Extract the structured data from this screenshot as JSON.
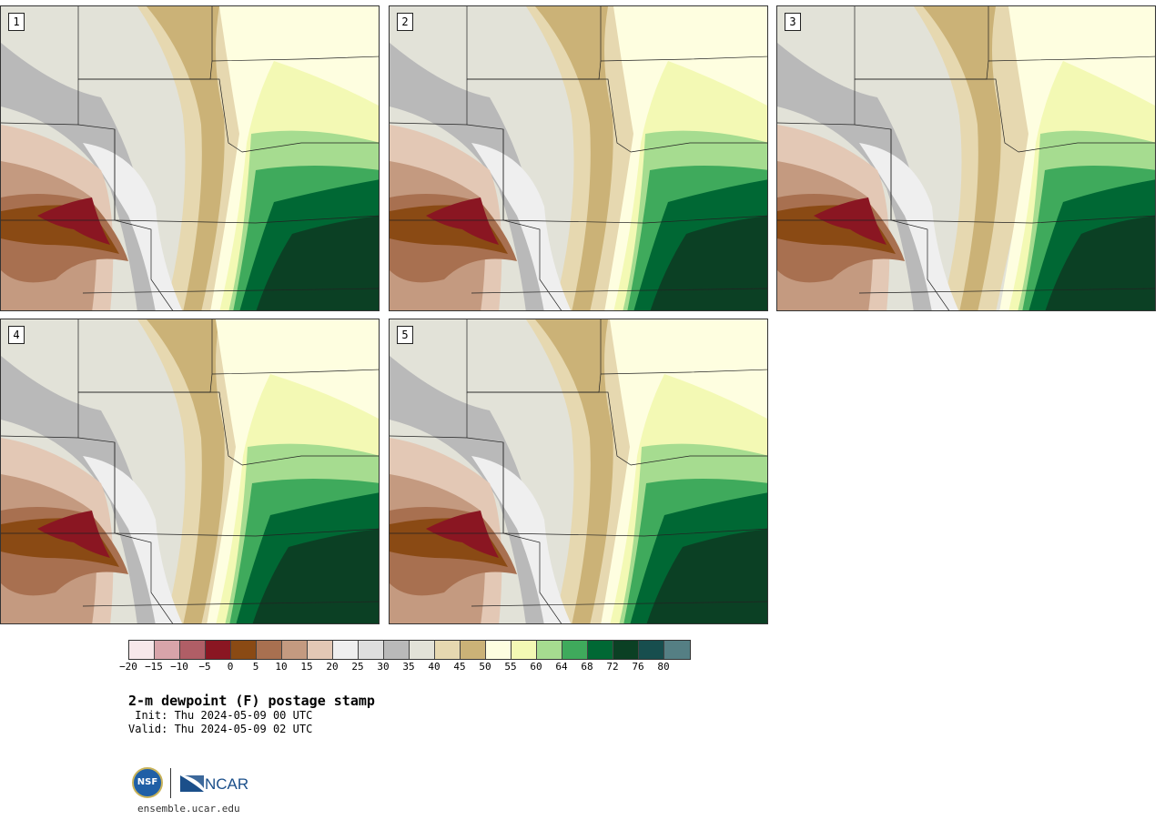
{
  "panels": [
    {
      "label": "1"
    },
    {
      "label": "2"
    },
    {
      "label": "3"
    },
    {
      "label": "4"
    },
    {
      "label": "5"
    }
  ],
  "colorbar": {
    "colors": [
      "#f7e8ea",
      "#d8a4aa",
      "#b05e66",
      "#8a1622",
      "#8a4a14",
      "#a87050",
      "#c49a80",
      "#e3c8b5",
      "#efefef",
      "#dedede",
      "#b9b9b9",
      "#e2e2d8",
      "#e6d8b0",
      "#cbb277",
      "#fefee0",
      "#f3f9b4",
      "#a6dc90",
      "#3faa5c",
      "#006834",
      "#0b4024",
      "#174e4e",
      "#557f84"
    ],
    "ticks": [
      "−20",
      "−15",
      "−10",
      "−5",
      "0",
      "5",
      "10",
      "15",
      "20",
      "25",
      "30",
      "35",
      "40",
      "45",
      "50",
      "55",
      "60",
      "64",
      "68",
      "72",
      "76",
      "80"
    ]
  },
  "title": "2-m dewpoint (F) postage stamp",
  "init": " Init: Thu 2024-05-09 00 UTC",
  "valid": "Valid: Thu 2024-05-09 02 UTC",
  "logo": {
    "nsf": "NSF",
    "ncar": "NCAR"
  },
  "url": "ensemble.ucar.edu"
}
